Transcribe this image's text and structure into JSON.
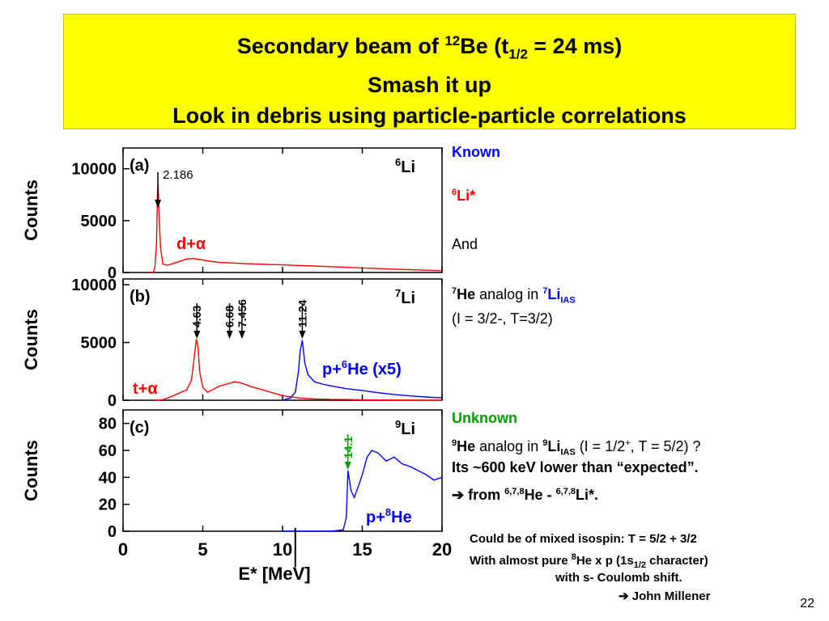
{
  "title": {
    "line1_pre": "Secondary beam of ",
    "line1_sup": "12",
    "line1_mid": "Be (t",
    "line1_sub": "1/2",
    "line1_post": " = 24 ms)",
    "line2": "Smash it up",
    "line3": "Look in debris using particle-particle correlations"
  },
  "side": {
    "known": "Known",
    "li6_sup": "6",
    "li6": "Li*",
    "and": "And",
    "he7_sup": "7",
    "he7": "He",
    "analog_in": " analog in ",
    "li7_sup": "7",
    "li7": "Li",
    "ias": "IAS",
    "li7_spin": "(I = 3/2-, T=3/2)",
    "unknown": "Unknown",
    "he9_sup": "9",
    "he9": "He",
    "li9_sup": "9",
    "li9": "Li",
    "li9_spin_pre": " (I = 1/2",
    "li9_spin_sup": "+",
    "li9_spin_post": ", T = 5/2) ?",
    "lower": "Its ~600 keV lower than “expected”.",
    "from_pre": " ➔ from ",
    "from_sup1": "6,7,8",
    "from_mid": "He - ",
    "from_sup2": "6,7,8",
    "from_post": "Li*.",
    "mixed": "Could be of mixed isospin: T = 5/2 + 3/2",
    "pure_pre": "With almost pure ",
    "pure_sup": "8",
    "pure_mid": "He x p (1s",
    "pure_sub": "1/2",
    "pure_post": " character)",
    "coulomb": "with s- Coulomb shift.",
    "millener": "➔ John Millener"
  },
  "page_number": "22",
  "colors": {
    "title_bg": "#ffff00",
    "red": "#ff0000",
    "blue": "#0000ff",
    "green": "#00a000"
  },
  "chart_data": [
    {
      "type": "line",
      "panel_label": "(a)",
      "nucleus": "6Li",
      "nucleus_sup": "6",
      "nucleus_base": "Li",
      "xlim": [
        0,
        20
      ],
      "ylim": [
        0,
        12000
      ],
      "yticks": [
        0,
        5000,
        10000
      ],
      "ylabel": "Counts",
      "annotations": [
        {
          "x": 2.186,
          "text": "2.186",
          "color": "#000000"
        }
      ],
      "series": [
        {
          "label": "d+α",
          "color": "#ff0000",
          "x": [
            1.7,
            1.9,
            2.0,
            2.1,
            2.15,
            2.2,
            2.25,
            2.35,
            2.5,
            2.8,
            3.2,
            3.6,
            4.0,
            4.4,
            4.8,
            5.2,
            5.6,
            6.0,
            7,
            8,
            9,
            10,
            11,
            12,
            13,
            14,
            15,
            16,
            17,
            18,
            19,
            20
          ],
          "y": [
            0,
            30,
            500,
            3000,
            7200,
            8600,
            6000,
            2400,
            800,
            700,
            900,
            1100,
            1300,
            1350,
            1250,
            1150,
            1050,
            980,
            900,
            830,
            780,
            730,
            680,
            620,
            560,
            500,
            440,
            380,
            320,
            270,
            220,
            180
          ]
        }
      ]
    },
    {
      "type": "line",
      "panel_label": "(b)",
      "nucleus": "7Li",
      "nucleus_sup": "7",
      "nucleus_base": "Li",
      "xlim": [
        0,
        20
      ],
      "ylim": [
        0,
        10500
      ],
      "yticks": [
        0,
        5000,
        10000
      ],
      "ylabel": "Counts",
      "annotations": [
        {
          "x": 4.63,
          "text": "4.63",
          "color": "#000000"
        },
        {
          "x": 6.68,
          "text": "6.68",
          "color": "#000000"
        },
        {
          "x": 7.456,
          "text": "7.456",
          "color": "#000000"
        },
        {
          "x": 11.24,
          "text": "11.24",
          "color": "#000000"
        }
      ],
      "series": [
        {
          "label": "t+α",
          "color": "#ff0000",
          "x": [
            2.0,
            2.5,
            3.0,
            3.5,
            4.0,
            4.3,
            4.5,
            4.6,
            4.7,
            4.8,
            5.0,
            5.3,
            5.6,
            6.0,
            6.5,
            7.0,
            7.4,
            8.0,
            9.0,
            10.0,
            11,
            12,
            13,
            14,
            15,
            16,
            17,
            18,
            19,
            20
          ],
          "y": [
            0,
            50,
            300,
            600,
            900,
            1800,
            4200,
            5300,
            4600,
            2500,
            1100,
            700,
            900,
            1200,
            1400,
            1600,
            1500,
            1200,
            800,
            400,
            200,
            120,
            80,
            60,
            40,
            30,
            20,
            15,
            10,
            5
          ]
        },
        {
          "label": "p+⁶He (x5)",
          "label_sup": "6",
          "label_pre": "p+",
          "label_post": "He (x5)",
          "color": "#0000ff",
          "x": [
            10.0,
            10.5,
            10.8,
            11.0,
            11.1,
            11.24,
            11.4,
            11.6,
            12.0,
            12.5,
            13,
            14,
            15,
            16,
            17,
            18,
            19,
            20
          ],
          "y": [
            0,
            200,
            700,
            2500,
            4200,
            5200,
            3200,
            2200,
            1600,
            1400,
            1250,
            1000,
            850,
            650,
            500,
            380,
            280,
            200
          ]
        }
      ]
    },
    {
      "type": "line",
      "panel_label": "(c)",
      "nucleus": "9Li",
      "nucleus_sup": "9",
      "nucleus_base": "Li",
      "xlim": [
        0,
        20
      ],
      "ylim": [
        0,
        90
      ],
      "yticks": [
        0,
        20,
        40,
        60,
        80
      ],
      "ylabel": "Counts",
      "xlabel": "E* [MeV]",
      "xticks": [
        0,
        5,
        10,
        15,
        20
      ],
      "annotations": [
        {
          "x": 14.1,
          "text": "14.1",
          "color": "#00a000"
        }
      ],
      "series": [
        {
          "label": "p+⁸He",
          "label_sup": "8",
          "label_pre": "p+",
          "label_post": "He",
          "color": "#0000ff",
          "x": [
            10.0,
            11,
            12,
            13,
            13.8,
            14.0,
            14.1,
            14.3,
            14.5,
            14.8,
            15.0,
            15.3,
            15.6,
            16.0,
            16.5,
            17,
            17.5,
            18,
            18.5,
            19,
            19.5,
            20
          ],
          "y": [
            0,
            0,
            0,
            0,
            1,
            10,
            45,
            30,
            25,
            35,
            42,
            55,
            60,
            58,
            52,
            55,
            50,
            48,
            45,
            42,
            38,
            40
          ]
        }
      ]
    }
  ]
}
